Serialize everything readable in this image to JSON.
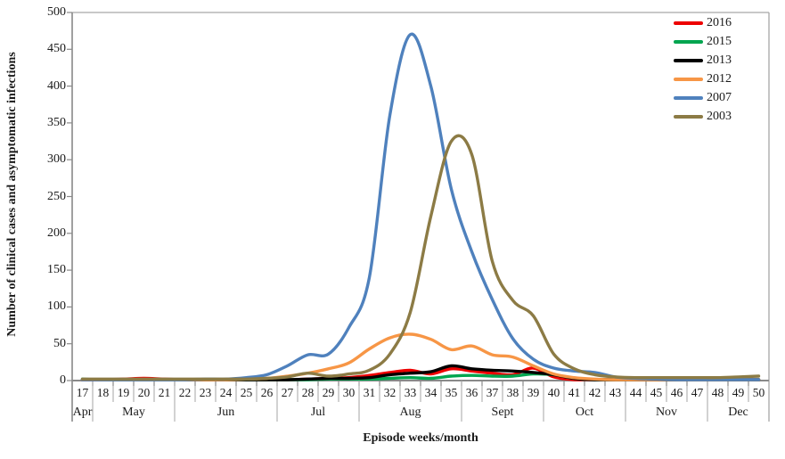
{
  "chart_data": {
    "type": "line",
    "title": "",
    "xlabel": "Episode weeks/month",
    "ylabel": "Number of clinical cases and asymptomatic infections",
    "ylim": [
      0,
      500
    ],
    "ytick_step": 50,
    "yticks": [
      0,
      50,
      100,
      150,
      200,
      250,
      300,
      350,
      400,
      450,
      500
    ],
    "grid": false,
    "legend_position": "top-right",
    "weeks": [
      17,
      18,
      19,
      20,
      21,
      22,
      23,
      24,
      25,
      26,
      27,
      28,
      29,
      30,
      31,
      32,
      33,
      34,
      35,
      36,
      37,
      38,
      39,
      40,
      41,
      42,
      43,
      44,
      45,
      46,
      47,
      48,
      49,
      50
    ],
    "month_groups": [
      {
        "label": "Apr",
        "weeks": 1
      },
      {
        "label": "May",
        "weeks": 4
      },
      {
        "label": "Jun",
        "weeks": 5
      },
      {
        "label": "Jul",
        "weeks": 4
      },
      {
        "label": "Aug",
        "weeks": 5
      },
      {
        "label": "Sept",
        "weeks": 4
      },
      {
        "label": "Oct",
        "weeks": 4
      },
      {
        "label": "Nov",
        "weeks": 4
      },
      {
        "label": "Dec",
        "weeks": 3
      }
    ],
    "series": [
      {
        "name": "2016",
        "color": "#ed0000",
        "values": [
          0,
          1,
          2,
          3,
          2,
          1,
          1,
          1,
          1,
          1,
          1,
          2,
          3,
          4,
          7,
          11,
          14,
          9,
          16,
          13,
          10,
          8,
          17,
          5,
          1,
          0,
          0,
          0,
          0,
          0,
          0,
          0,
          0,
          0
        ]
      },
      {
        "name": "2015",
        "color": "#00a54f",
        "values": [
          2,
          1,
          1,
          1,
          1,
          1,
          1,
          1,
          1,
          1,
          1,
          1,
          2,
          2,
          2,
          3,
          4,
          3,
          6,
          7,
          6,
          6,
          9,
          8,
          3,
          1,
          0,
          0,
          0,
          0,
          0,
          0,
          0,
          0
        ]
      },
      {
        "name": "2013",
        "color": "#000000",
        "values": [
          0,
          0,
          0,
          1,
          1,
          1,
          1,
          1,
          1,
          1,
          1,
          2,
          3,
          3,
          4,
          8,
          10,
          12,
          20,
          16,
          14,
          13,
          11,
          8,
          3,
          1,
          0,
          0,
          0,
          0,
          0,
          0,
          0,
          0
        ]
      },
      {
        "name": "2012",
        "color": "#f79646",
        "values": [
          0,
          0,
          1,
          1,
          1,
          1,
          1,
          1,
          2,
          3,
          6,
          10,
          16,
          24,
          43,
          58,
          63,
          56,
          42,
          47,
          35,
          32,
          20,
          9,
          4,
          2,
          1,
          0,
          0,
          0,
          0,
          0,
          0,
          0
        ]
      },
      {
        "name": "2007",
        "color": "#4f81bd",
        "values": [
          1,
          1,
          1,
          1,
          1,
          1,
          2,
          2,
          4,
          8,
          20,
          35,
          36,
          72,
          140,
          360,
          470,
          400,
          260,
          175,
          110,
          57,
          29,
          17,
          13,
          11,
          5,
          3,
          2,
          1,
          1,
          1,
          1,
          1
        ]
      },
      {
        "name": "2003",
        "color": "#8c7b45",
        "values": [
          2,
          2,
          2,
          2,
          2,
          2,
          2,
          2,
          2,
          3,
          5,
          10,
          6,
          9,
          14,
          36,
          93,
          223,
          325,
          307,
          162,
          109,
          88,
          36,
          16,
          8,
          5,
          4,
          4,
          4,
          4,
          4,
          5,
          6
        ]
      }
    ]
  }
}
